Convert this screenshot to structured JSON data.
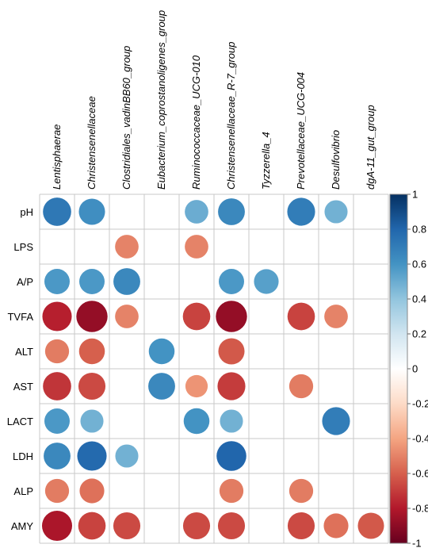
{
  "chart_data": {
    "type": "heatmap",
    "style": "correlation-circles",
    "columns": [
      "Lentisphaerae",
      "Christensenellaceae",
      "Clostridiales_vadinBB60_group",
      "Eubacterium_coprostanoligenes_group",
      "Ruminococcaceae_UCG-010",
      "Christensenellaceae_R-7_group",
      "Tyzzerella_4",
      "Prevotellaceae_UCG-004",
      "Desulfovibrio",
      "dgA-11_gut_group"
    ],
    "rows": [
      "pH",
      "LPS",
      "A/P",
      "TVFA",
      "ALT",
      "AST",
      "LACT",
      "LDH",
      "ALP",
      "AMY"
    ],
    "values": [
      [
        0.72,
        0.62,
        null,
        null,
        0.5,
        0.65,
        null,
        0.7,
        0.48,
        null
      ],
      [
        null,
        null,
        -0.5,
        null,
        -0.5,
        null,
        null,
        null,
        null,
        null
      ],
      [
        0.58,
        0.58,
        0.65,
        null,
        null,
        0.58,
        0.55,
        null,
        null,
        null
      ],
      [
        -0.78,
        -0.88,
        -0.5,
        null,
        -0.68,
        -0.88,
        null,
        -0.68,
        -0.5,
        null
      ],
      [
        -0.52,
        -0.6,
        null,
        0.6,
        null,
        -0.62,
        null,
        null,
        null,
        null
      ],
      [
        -0.72,
        -0.66,
        null,
        0.65,
        -0.45,
        -0.7,
        null,
        -0.52,
        null,
        null
      ],
      [
        0.58,
        0.48,
        null,
        null,
        0.6,
        0.48,
        null,
        null,
        0.7,
        null
      ],
      [
        0.65,
        0.78,
        0.48,
        null,
        null,
        0.8,
        null,
        null,
        null,
        null
      ],
      [
        -0.52,
        -0.55,
        null,
        null,
        null,
        -0.52,
        null,
        -0.52,
        null,
        null
      ],
      [
        -0.82,
        -0.68,
        -0.66,
        null,
        -0.66,
        -0.66,
        null,
        -0.66,
        -0.55,
        -0.62
      ]
    ],
    "colorbar": {
      "range": [
        -1,
        1
      ],
      "ticks": [
        "-1",
        "-0.8",
        "-0.6",
        "-0.4",
        "-0.2",
        "0",
        "0.2",
        "0.4",
        "0.6",
        "0.8",
        "1"
      ],
      "tick_values": [
        -1,
        -0.8,
        -0.6,
        -0.4,
        -0.2,
        0,
        0.2,
        0.4,
        0.6,
        0.8,
        1
      ],
      "placement": "right",
      "colors": [
        "#67001f",
        "#b2182b",
        "#d6604d",
        "#f4a582",
        "#fddbc7",
        "#ffffff",
        "#d1e5f0",
        "#92c5de",
        "#4393c3",
        "#2166ac",
        "#053061"
      ]
    },
    "grid": true
  }
}
